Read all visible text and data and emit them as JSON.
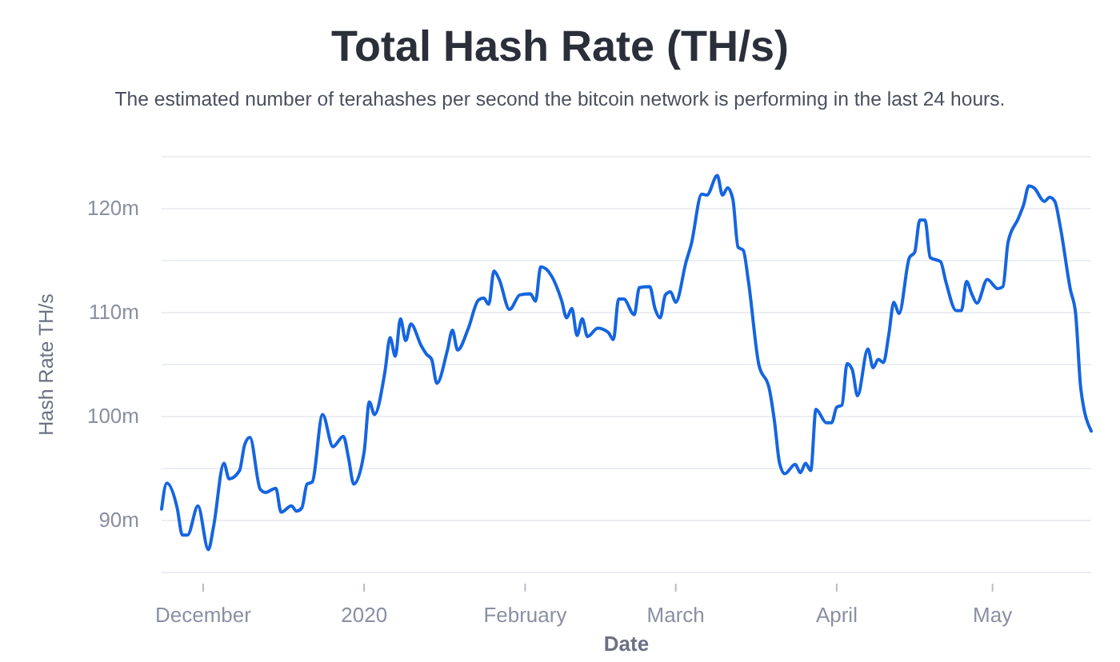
{
  "chart_data": {
    "type": "line",
    "title": "Total Hash Rate (TH/s)",
    "subtitle": "The estimated number of terahashes per second the bitcoin network is performing in the last 24 hours.",
    "xlabel": "Date",
    "ylabel": "Hash Rate TH/s",
    "x": [
      "2019-11-23",
      "2019-11-24",
      "2019-11-26",
      "2019-11-27",
      "2019-11-28",
      "2019-11-30",
      "2019-12-02",
      "2019-12-03",
      "2019-12-05",
      "2019-12-06",
      "2019-12-08",
      "2019-12-09",
      "2019-12-10",
      "2019-12-12",
      "2019-12-13",
      "2019-12-15",
      "2019-12-16",
      "2019-12-18",
      "2019-12-19",
      "2019-12-20",
      "2019-12-21",
      "2019-12-22",
      "2019-12-24",
      "2019-12-26",
      "2019-12-28",
      "2019-12-29",
      "2019-12-30",
      "2020-01-01",
      "2020-01-02",
      "2020-01-03",
      "2020-01-05",
      "2020-01-06",
      "2020-01-07",
      "2020-01-08",
      "2020-01-09",
      "2020-01-10",
      "2020-01-12",
      "2020-01-13",
      "2020-01-14",
      "2020-01-15",
      "2020-01-17",
      "2020-01-18",
      "2020-01-19",
      "2020-01-21",
      "2020-01-23",
      "2020-01-24",
      "2020-01-25",
      "2020-01-26",
      "2020-01-27",
      "2020-01-29",
      "2020-01-31",
      "2020-02-02",
      "2020-02-03",
      "2020-02-04",
      "2020-02-06",
      "2020-02-08",
      "2020-02-09",
      "2020-02-10",
      "2020-02-11",
      "2020-02-12",
      "2020-02-13",
      "2020-02-15",
      "2020-02-17",
      "2020-02-18",
      "2020-02-19",
      "2020-02-20",
      "2020-02-22",
      "2020-02-23",
      "2020-02-25",
      "2020-02-26",
      "2020-02-27",
      "2020-02-28",
      "2020-02-29",
      "2020-03-01",
      "2020-03-03",
      "2020-03-04",
      "2020-03-06",
      "2020-03-07",
      "2020-03-09",
      "2020-03-10",
      "2020-03-11",
      "2020-03-12",
      "2020-03-13",
      "2020-03-14",
      "2020-03-15",
      "2020-03-17",
      "2020-03-19",
      "2020-03-20",
      "2020-03-21",
      "2020-03-22",
      "2020-03-24",
      "2020-03-25",
      "2020-03-26",
      "2020-03-27",
      "2020-03-28",
      "2020-03-30",
      "2020-03-31",
      "2020-04-01",
      "2020-04-02",
      "2020-04-03",
      "2020-04-04",
      "2020-04-05",
      "2020-04-07",
      "2020-04-08",
      "2020-04-09",
      "2020-04-10",
      "2020-04-11",
      "2020-04-12",
      "2020-04-13",
      "2020-04-15",
      "2020-04-16",
      "2020-04-17",
      "2020-04-18",
      "2020-04-19",
      "2020-04-21",
      "2020-04-22",
      "2020-04-24",
      "2020-04-25",
      "2020-04-26",
      "2020-04-27",
      "2020-04-28",
      "2020-04-30",
      "2020-05-02",
      "2020-05-03",
      "2020-05-04",
      "2020-05-06",
      "2020-05-07",
      "2020-05-08",
      "2020-05-09",
      "2020-05-11",
      "2020-05-12",
      "2020-05-13",
      "2020-05-14",
      "2020-05-16",
      "2020-05-17",
      "2020-05-18",
      "2020-05-20"
    ],
    "series": [
      {
        "color": "#1565e0",
        "values": [
          91.1,
          93.6,
          91.2,
          88.6,
          88.6,
          91.4,
          87.2,
          89.4,
          95.5,
          94,
          94.8,
          97.3,
          98,
          93,
          92.7,
          93.1,
          90.8,
          91.4,
          90.9,
          91.2,
          93.5,
          93.7,
          100.2,
          97.1,
          98.1,
          96,
          93.5,
          96.6,
          101.4,
          100.2,
          104.3,
          107.6,
          105.8,
          109.4,
          107.3,
          108.9,
          106.8,
          106,
          105.5,
          103.2,
          106.3,
          108.3,
          106.4,
          108.4,
          111.2,
          111.4,
          110.8,
          114,
          113.2,
          110.3,
          111.7,
          111.8,
          111.1,
          114.4,
          113.6,
          111.2,
          109.5,
          110.4,
          107.8,
          109.4,
          107.7,
          108.5,
          108.1,
          107.4,
          111.3,
          111.3,
          109.8,
          112.4,
          112.5,
          110.4,
          109.5,
          111.7,
          112,
          111,
          114.9,
          116.6,
          121.4,
          121.3,
          123.2,
          121.3,
          122,
          120.9,
          116.3,
          116,
          113,
          105,
          102.7,
          99.6,
          95.5,
          94.5,
          95.4,
          94.6,
          95.5,
          94.8,
          100.7,
          99.4,
          99.4,
          100.9,
          101.1,
          105.1,
          104.5,
          102,
          106.5,
          104.7,
          105.5,
          105.2,
          107.8,
          111,
          109.9,
          115.3,
          115.8,
          118.9,
          118.9,
          115.3,
          114.9,
          113,
          110.2,
          110.2,
          113,
          111.8,
          110.9,
          113.2,
          112.3,
          112.5,
          116.8,
          119.1,
          120.4,
          122.2,
          122,
          120.7,
          121.1,
          120.7,
          118.4,
          112.2,
          109.9,
          102.7,
          98.6
        ]
      }
    ],
    "xlim": [
      "2019-11-23",
      "2020-05-20"
    ],
    "xticks": [
      {
        "value": "2019-12-01",
        "label": "December"
      },
      {
        "value": "2020-01-01",
        "label": "2020"
      },
      {
        "value": "2020-02-01",
        "label": "February"
      },
      {
        "value": "2020-03-01",
        "label": "March"
      },
      {
        "value": "2020-04-01",
        "label": "April"
      },
      {
        "value": "2020-05-01",
        "label": "May"
      }
    ],
    "ylim": [
      85,
      125
    ],
    "yticks": [
      {
        "value": 85,
        "label": null
      },
      {
        "value": 90,
        "label": "90m"
      },
      {
        "value": 95,
        "label": null
      },
      {
        "value": 100,
        "label": "100m"
      },
      {
        "value": 105,
        "label": null
      },
      {
        "value": 110,
        "label": "110m"
      },
      {
        "value": 115,
        "label": null
      },
      {
        "value": 120,
        "label": "120m"
      },
      {
        "value": 125,
        "label": null
      }
    ],
    "grid": "y",
    "marker": "none",
    "line_style": "solid"
  }
}
